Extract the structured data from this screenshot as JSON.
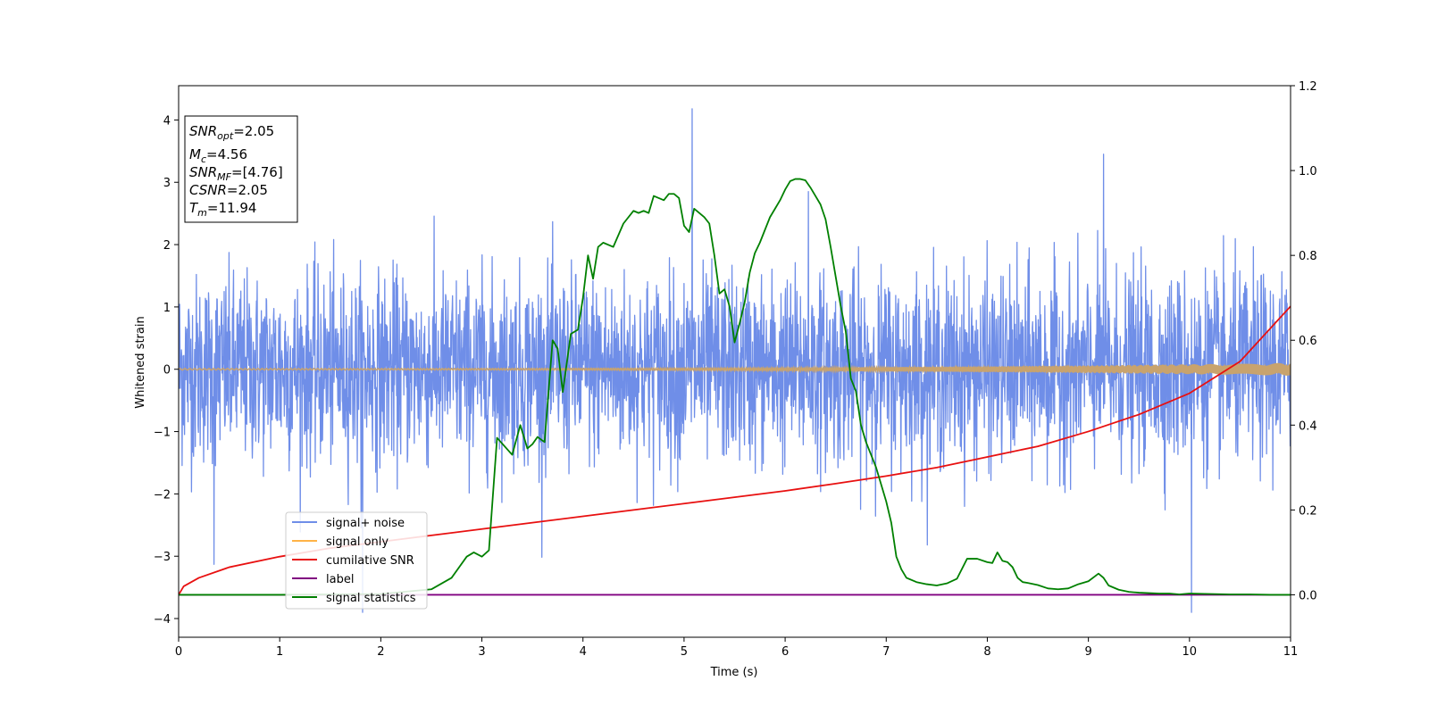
{
  "chart_data": {
    "type": "line",
    "title": "",
    "xlabel": "Time (s)",
    "ylabel": "Whitened strain",
    "xlim": [
      0,
      11
    ],
    "ylim": [
      -4.3,
      4.55
    ],
    "y2lim": [
      -0.1,
      1.2
    ],
    "x_ticks": [
      "0",
      "1",
      "2",
      "3",
      "4",
      "5",
      "6",
      "7",
      "8",
      "9",
      "10",
      "11"
    ],
    "y_ticks": [
      "−4",
      "−3",
      "−2",
      "−1",
      "0",
      "1",
      "2",
      "3",
      "4"
    ],
    "y2_ticks": [
      "0.0",
      "0.2",
      "0.4",
      "0.6",
      "0.8",
      "1.0",
      "1.2"
    ],
    "legend_position": "lower-left",
    "info_box": {
      "snr_opt": {
        "sym": "SNR",
        "sub": "opt",
        "value": "=2.05"
      },
      "mc": {
        "sym": "M",
        "sub": "c",
        "value": "=4.56"
      },
      "snr_mf": {
        "sym": "SNR",
        "sub": "MF",
        "value": "=[4.76]"
      },
      "csnr": {
        "sym": "CSNR",
        "sub": "",
        "value": "=2.05"
      },
      "tm": {
        "sym": "T",
        "sub": "m",
        "value": "=11.94"
      }
    },
    "series": [
      {
        "name": "signal+ noise",
        "color": "#6f8ee8",
        "axis": "left",
        "description_values": "noise band roughly ±1.5, spikes up to 4.18 at t≈5.08 and down to −3.9 at t≈10.02"
      },
      {
        "name": "signal only",
        "color": "#ffb347",
        "axis": "left",
        "values_note": "chirp oscillating around 0, amplitude growing slowly to ≈0.1 at t=11"
      },
      {
        "name": "cumilative SNR",
        "color": "#e81010",
        "axis": "right",
        "x": [
          0,
          0.05,
          0.2,
          0.5,
          1,
          1.5,
          2,
          2.5,
          3,
          3.5,
          4,
          4.5,
          5,
          5.5,
          6,
          6.5,
          7,
          7.5,
          8,
          8.5,
          9,
          9.5,
          10,
          10.5,
          11
        ],
        "y": [
          0.0,
          0.02,
          0.04,
          0.065,
          0.09,
          0.11,
          0.125,
          0.14,
          0.155,
          0.17,
          0.185,
          0.2,
          0.215,
          0.23,
          0.245,
          0.262,
          0.28,
          0.3,
          0.325,
          0.35,
          0.385,
          0.425,
          0.475,
          0.55,
          0.68
        ]
      },
      {
        "name": "label",
        "color": "#800080",
        "axis": "right",
        "x": [
          0,
          11
        ],
        "y": [
          0,
          0
        ]
      },
      {
        "name": "signal statistics",
        "color": "#008000",
        "axis": "right",
        "x": [
          0,
          0.5,
          1,
          1.5,
          2,
          2.5,
          2.7,
          2.85,
          2.92,
          3.0,
          3.07,
          3.15,
          3.3,
          3.38,
          3.45,
          3.5,
          3.55,
          3.62,
          3.7,
          3.75,
          3.8,
          3.88,
          3.95,
          4.0,
          4.05,
          4.1,
          4.15,
          4.2,
          4.3,
          4.4,
          4.5,
          4.55,
          4.6,
          4.65,
          4.7,
          4.8,
          4.85,
          4.9,
          4.95,
          5.0,
          5.05,
          5.1,
          5.15,
          5.2,
          5.25,
          5.3,
          5.35,
          5.4,
          5.45,
          5.5,
          5.55,
          5.6,
          5.65,
          5.7,
          5.75,
          5.8,
          5.85,
          5.9,
          5.95,
          6.0,
          6.05,
          6.1,
          6.15,
          6.2,
          6.25,
          6.3,
          6.35,
          6.4,
          6.45,
          6.5,
          6.55,
          6.6,
          6.65,
          6.7,
          6.75,
          6.8,
          6.85,
          6.9,
          6.95,
          7.0,
          7.05,
          7.1,
          7.15,
          7.2,
          7.3,
          7.4,
          7.5,
          7.6,
          7.7,
          7.8,
          7.9,
          8.0,
          8.05,
          8.1,
          8.15,
          8.2,
          8.25,
          8.3,
          8.35,
          8.4,
          8.5,
          8.6,
          8.7,
          8.8,
          8.9,
          9.0,
          9.1,
          9.15,
          9.2,
          9.3,
          9.4,
          9.5,
          9.6,
          9.7,
          9.8,
          9.9,
          10.0,
          10.2,
          10.4,
          10.6,
          10.8,
          11
        ],
        "y": [
          0.0,
          0.0,
          0.0,
          0.001,
          0.002,
          0.013,
          0.04,
          0.09,
          0.1,
          0.09,
          0.105,
          0.37,
          0.33,
          0.4,
          0.345,
          0.355,
          0.372,
          0.36,
          0.6,
          0.58,
          0.478,
          0.615,
          0.625,
          0.7,
          0.8,
          0.745,
          0.82,
          0.83,
          0.82,
          0.875,
          0.905,
          0.9,
          0.905,
          0.9,
          0.94,
          0.93,
          0.945,
          0.945,
          0.935,
          0.87,
          0.855,
          0.91,
          0.9,
          0.89,
          0.875,
          0.8,
          0.71,
          0.72,
          0.68,
          0.595,
          0.64,
          0.69,
          0.76,
          0.805,
          0.83,
          0.86,
          0.89,
          0.91,
          0.93,
          0.955,
          0.975,
          0.98,
          0.98,
          0.977,
          0.96,
          0.94,
          0.92,
          0.885,
          0.82,
          0.75,
          0.68,
          0.62,
          0.51,
          0.48,
          0.4,
          0.36,
          0.33,
          0.3,
          0.26,
          0.22,
          0.17,
          0.09,
          0.06,
          0.04,
          0.03,
          0.025,
          0.022,
          0.027,
          0.038,
          0.085,
          0.085,
          0.077,
          0.075,
          0.1,
          0.08,
          0.077,
          0.065,
          0.04,
          0.03,
          0.028,
          0.023,
          0.015,
          0.013,
          0.015,
          0.025,
          0.032,
          0.05,
          0.04,
          0.022,
          0.012,
          0.007,
          0.005,
          0.004,
          0.003,
          0.003,
          0.001,
          0.003,
          0.002,
          0.001,
          0.001,
          0.0,
          0.0
        ]
      }
    ]
  },
  "colors": {
    "noise": "#6f8ee8",
    "signal_only": "#ffb347",
    "signal_only_band": "#c8a36e",
    "cum_snr": "#e81010",
    "label": "#800080",
    "statistics": "#008000"
  }
}
